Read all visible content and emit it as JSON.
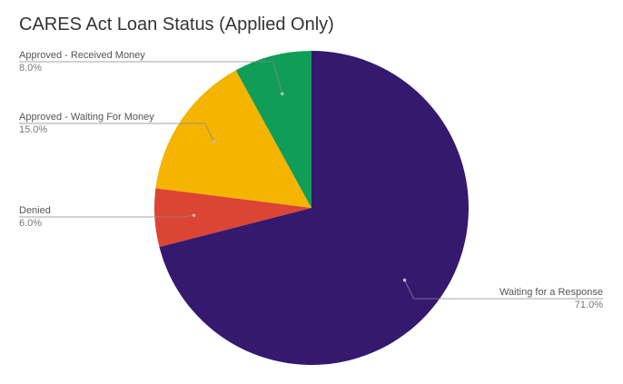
{
  "chart_data": {
    "type": "pie",
    "title": "CARES Act Loan Status (Applied Only)",
    "slices": [
      {
        "label": "Waiting for a Response",
        "percent_label": "71.0%",
        "value": 71.0,
        "color": "#35196f"
      },
      {
        "label": "Denied",
        "percent_label": "6.0%",
        "value": 6.0,
        "color": "#dc4433"
      },
      {
        "label": "Approved - Waiting For Money",
        "percent_label": "15.0%",
        "value": 15.0,
        "color": "#f4b400"
      },
      {
        "label": "Approved - Received Money",
        "percent_label": "8.0%",
        "value": 8.0,
        "color": "#109d58"
      }
    ],
    "start_angle_deg": 0,
    "direction": "clockwise",
    "legend": "none",
    "labels": "outside with leader lines"
  }
}
